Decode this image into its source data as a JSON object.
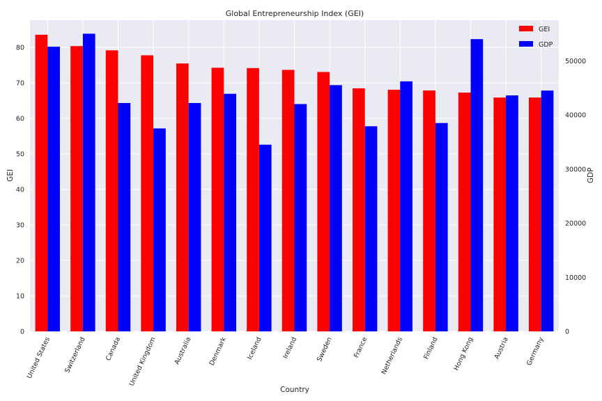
{
  "chart_data": {
    "type": "bar",
    "title": "Global Entrepreneurship Index (GEI)",
    "xlabel": "Country",
    "ylabel": "GEI",
    "y2label": "GDP",
    "categories": [
      "United States",
      "Switzerland",
      "Canada",
      "United Kingdom",
      "Australia",
      "Denmark",
      "Iceland",
      "Ireland",
      "Sweden",
      "France",
      "Netherlands",
      "Finland",
      "Hong Kong",
      "Austria",
      "Germany"
    ],
    "series": [
      {
        "name": "GEI",
        "axis": "left",
        "color": "#ff0000",
        "values": [
          83.6,
          80.4,
          79.2,
          77.8,
          75.5,
          74.3,
          74.2,
          73.7,
          73.1,
          68.5,
          68.1,
          67.9,
          67.3,
          65.9,
          65.9
        ]
      },
      {
        "name": "GDP",
        "axis": "right",
        "color": "#0000ff",
        "values": [
          52600,
          55000,
          42200,
          37500,
          42200,
          43900,
          34500,
          42000,
          45500,
          37900,
          46200,
          38500,
          54000,
          43600,
          44500
        ]
      }
    ],
    "ylim": [
      0,
      87.7
    ],
    "y2lim": [
      0,
      57500
    ],
    "yticks": [
      0,
      10,
      20,
      30,
      40,
      50,
      60,
      70,
      80
    ],
    "y2ticks": [
      0,
      10000,
      20000,
      30000,
      40000,
      50000
    ],
    "grid": true,
    "legend": "top-right"
  }
}
